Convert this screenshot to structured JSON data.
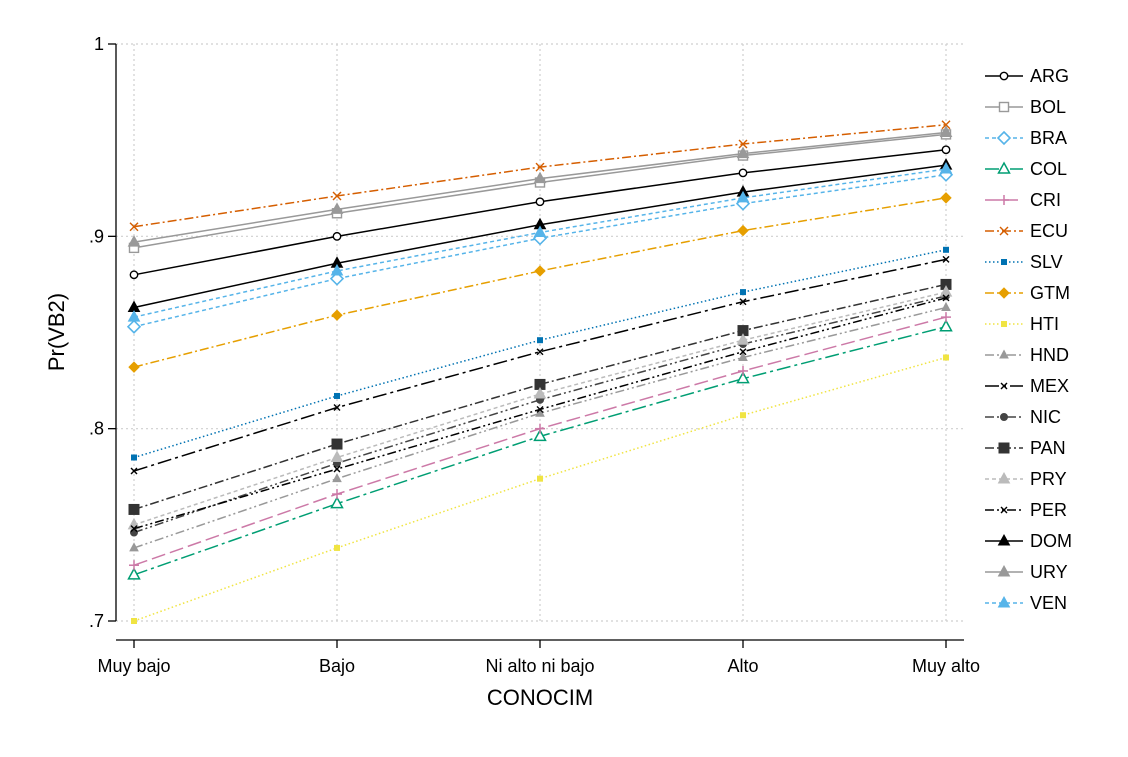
{
  "chart_data": {
    "type": "line",
    "xlabel": "CONOCIM",
    "ylabel": "Pr(VB2)",
    "categories": [
      "Muy bajo",
      "Bajo",
      "Ni alto ni bajo",
      "Alto",
      "Muy alto"
    ],
    "ylim": [
      0.7,
      1.0
    ],
    "yticks": [
      0.7,
      0.8,
      0.9,
      1.0
    ],
    "ytick_labels": [
      ".7",
      ".8",
      ".9",
      "1"
    ],
    "grid": true,
    "legend_position": "right",
    "series": [
      {
        "name": "ARG",
        "values": [
          0.88,
          0.9,
          0.918,
          0.933,
          0.945
        ],
        "color": "#000000",
        "marker": "circle-open",
        "dash": "solid"
      },
      {
        "name": "BOL",
        "values": [
          0.894,
          0.912,
          0.928,
          0.942,
          0.953
        ],
        "color": "#999999",
        "marker": "square-open",
        "dash": "solid"
      },
      {
        "name": "BRA",
        "values": [
          0.853,
          0.878,
          0.899,
          0.917,
          0.932
        ],
        "color": "#56b4e9",
        "marker": "diamond-open",
        "dash": "dash"
      },
      {
        "name": "COL",
        "values": [
          0.724,
          0.761,
          0.796,
          0.826,
          0.853
        ],
        "color": "#009e73",
        "marker": "triangle-open",
        "dash": "longdashdot"
      },
      {
        "name": "CRI",
        "values": [
          0.729,
          0.766,
          0.8,
          0.83,
          0.858
        ],
        "color": "#cc79a7",
        "marker": "plus",
        "dash": "longdash"
      },
      {
        "name": "ECU",
        "values": [
          0.905,
          0.921,
          0.936,
          0.948,
          0.958
        ],
        "color": "#d55e00",
        "marker": "x",
        "dash": "dashdot"
      },
      {
        "name": "SLV",
        "values": [
          0.785,
          0.817,
          0.846,
          0.871,
          0.893
        ],
        "color": "#0072b2",
        "marker": "smallsquare",
        "dash": "dot"
      },
      {
        "name": "GTM",
        "values": [
          0.832,
          0.859,
          0.882,
          0.903,
          0.92
        ],
        "color": "#e69f00",
        "marker": "diamond",
        "dash": "dashdot"
      },
      {
        "name": "HTI",
        "values": [
          0.7,
          0.738,
          0.774,
          0.807,
          0.837
        ],
        "color": "#f0e442",
        "marker": "smallsquare",
        "dash": "dot"
      },
      {
        "name": "HND",
        "values": [
          0.738,
          0.774,
          0.808,
          0.837,
          0.863
        ],
        "color": "#999999",
        "marker": "smalltriangle",
        "dash": "dashdotdot"
      },
      {
        "name": "MEX",
        "values": [
          0.778,
          0.811,
          0.84,
          0.866,
          0.888
        ],
        "color": "#000000",
        "marker": "smallx",
        "dash": "longdashdot"
      },
      {
        "name": "NIC",
        "values": [
          0.746,
          0.782,
          0.815,
          0.844,
          0.869
        ],
        "color": "#444444",
        "marker": "smallcircle",
        "dash": "dashdotdot"
      },
      {
        "name": "PAN",
        "values": [
          0.758,
          0.792,
          0.823,
          0.851,
          0.875
        ],
        "color": "#333333",
        "marker": "square",
        "dash": "dashdot"
      },
      {
        "name": "PRY",
        "values": [
          0.75,
          0.785,
          0.818,
          0.846,
          0.871
        ],
        "color": "#bbbbbb",
        "marker": "triangle",
        "dash": "dash"
      },
      {
        "name": "PER",
        "values": [
          0.748,
          0.779,
          0.81,
          0.84,
          0.868
        ],
        "color": "#000000",
        "marker": "smallx",
        "dash": "dashdotdot"
      },
      {
        "name": "DOM",
        "values": [
          0.863,
          0.886,
          0.906,
          0.923,
          0.937
        ],
        "color": "#000000",
        "marker": "triangle",
        "dash": "solid"
      },
      {
        "name": "URY",
        "values": [
          0.897,
          0.914,
          0.93,
          0.943,
          0.954
        ],
        "color": "#999999",
        "marker": "triangle",
        "dash": "solid"
      },
      {
        "name": "VEN",
        "values": [
          0.858,
          0.882,
          0.902,
          0.92,
          0.935
        ],
        "color": "#56b4e9",
        "marker": "triangle",
        "dash": "dash"
      }
    ]
  }
}
